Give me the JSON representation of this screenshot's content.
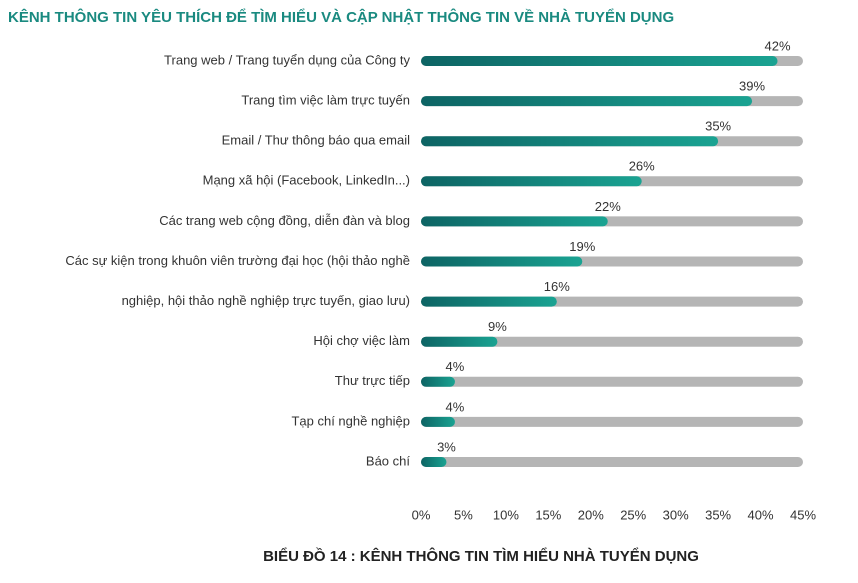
{
  "chart_data": {
    "type": "bar",
    "orientation": "horizontal",
    "title": "KÊNH THÔNG TIN YÊU THÍCH ĐỂ TÌM HIỂU VÀ CẬP NHẬT THÔNG TIN VỀ NHÀ TUYỂN DỤNG",
    "caption": "BIỂU ĐỒ 14 : KÊNH THÔNG TIN TÌM HIỂU NHÀ TUYỂN DỤNG",
    "categories": [
      "Trang web / Trang tuyển dụng của Công ty",
      "Trang tìm việc làm trực tuyến",
      "Email / Thư thông báo qua email",
      "Mạng xã hội (Facebook, LinkedIn...)",
      "Các trang web cộng đồng, diễn đàn và blog",
      "Các sự kiện trong khuôn viên trường đại học (hội thảo nghề",
      "nghiệp, hội thảo nghề nghiệp trực tuyến, giao lưu)",
      "Hội chợ việc làm",
      "Thư trực tiếp",
      "Tạp chí nghề nghiệp",
      "Báo chí"
    ],
    "values": [
      42,
      39,
      35,
      26,
      22,
      19,
      16,
      9,
      4,
      4,
      3
    ],
    "value_labels": [
      "42%",
      "39%",
      "35%",
      "26%",
      "22%",
      "19%",
      "16%",
      "9%",
      "4%",
      "4%",
      "3%"
    ],
    "color": "#138a80",
    "track_color": "#b5b5b5",
    "xlim": [
      0,
      45
    ],
    "xticks": [
      {
        "value": 0,
        "label": "0%"
      },
      {
        "value": 5,
        "label": "5%"
      },
      {
        "value": 10,
        "label": "10%"
      },
      {
        "value": 15,
        "label": "15%"
      },
      {
        "value": 20,
        "label": "20%"
      },
      {
        "value": 25,
        "label": "25%"
      },
      {
        "value": 30,
        "label": "30%"
      },
      {
        "value": 35,
        "label": "35%"
      },
      {
        "value": 40,
        "label": "40%"
      },
      {
        "value": 45,
        "label": "45%"
      }
    ],
    "grid": false
  }
}
